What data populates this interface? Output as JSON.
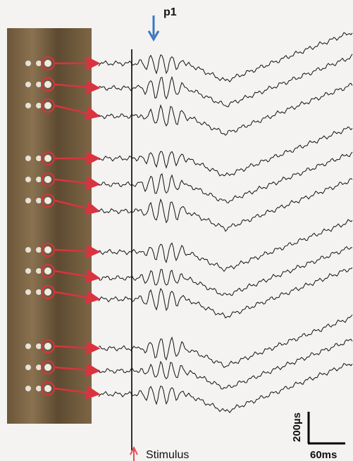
{
  "figure": {
    "peak_label": "p1",
    "stimulus_label": "Stimulus",
    "scale_vertical_label": "200µs",
    "scale_horizontal_label": "60ms"
  }
}
